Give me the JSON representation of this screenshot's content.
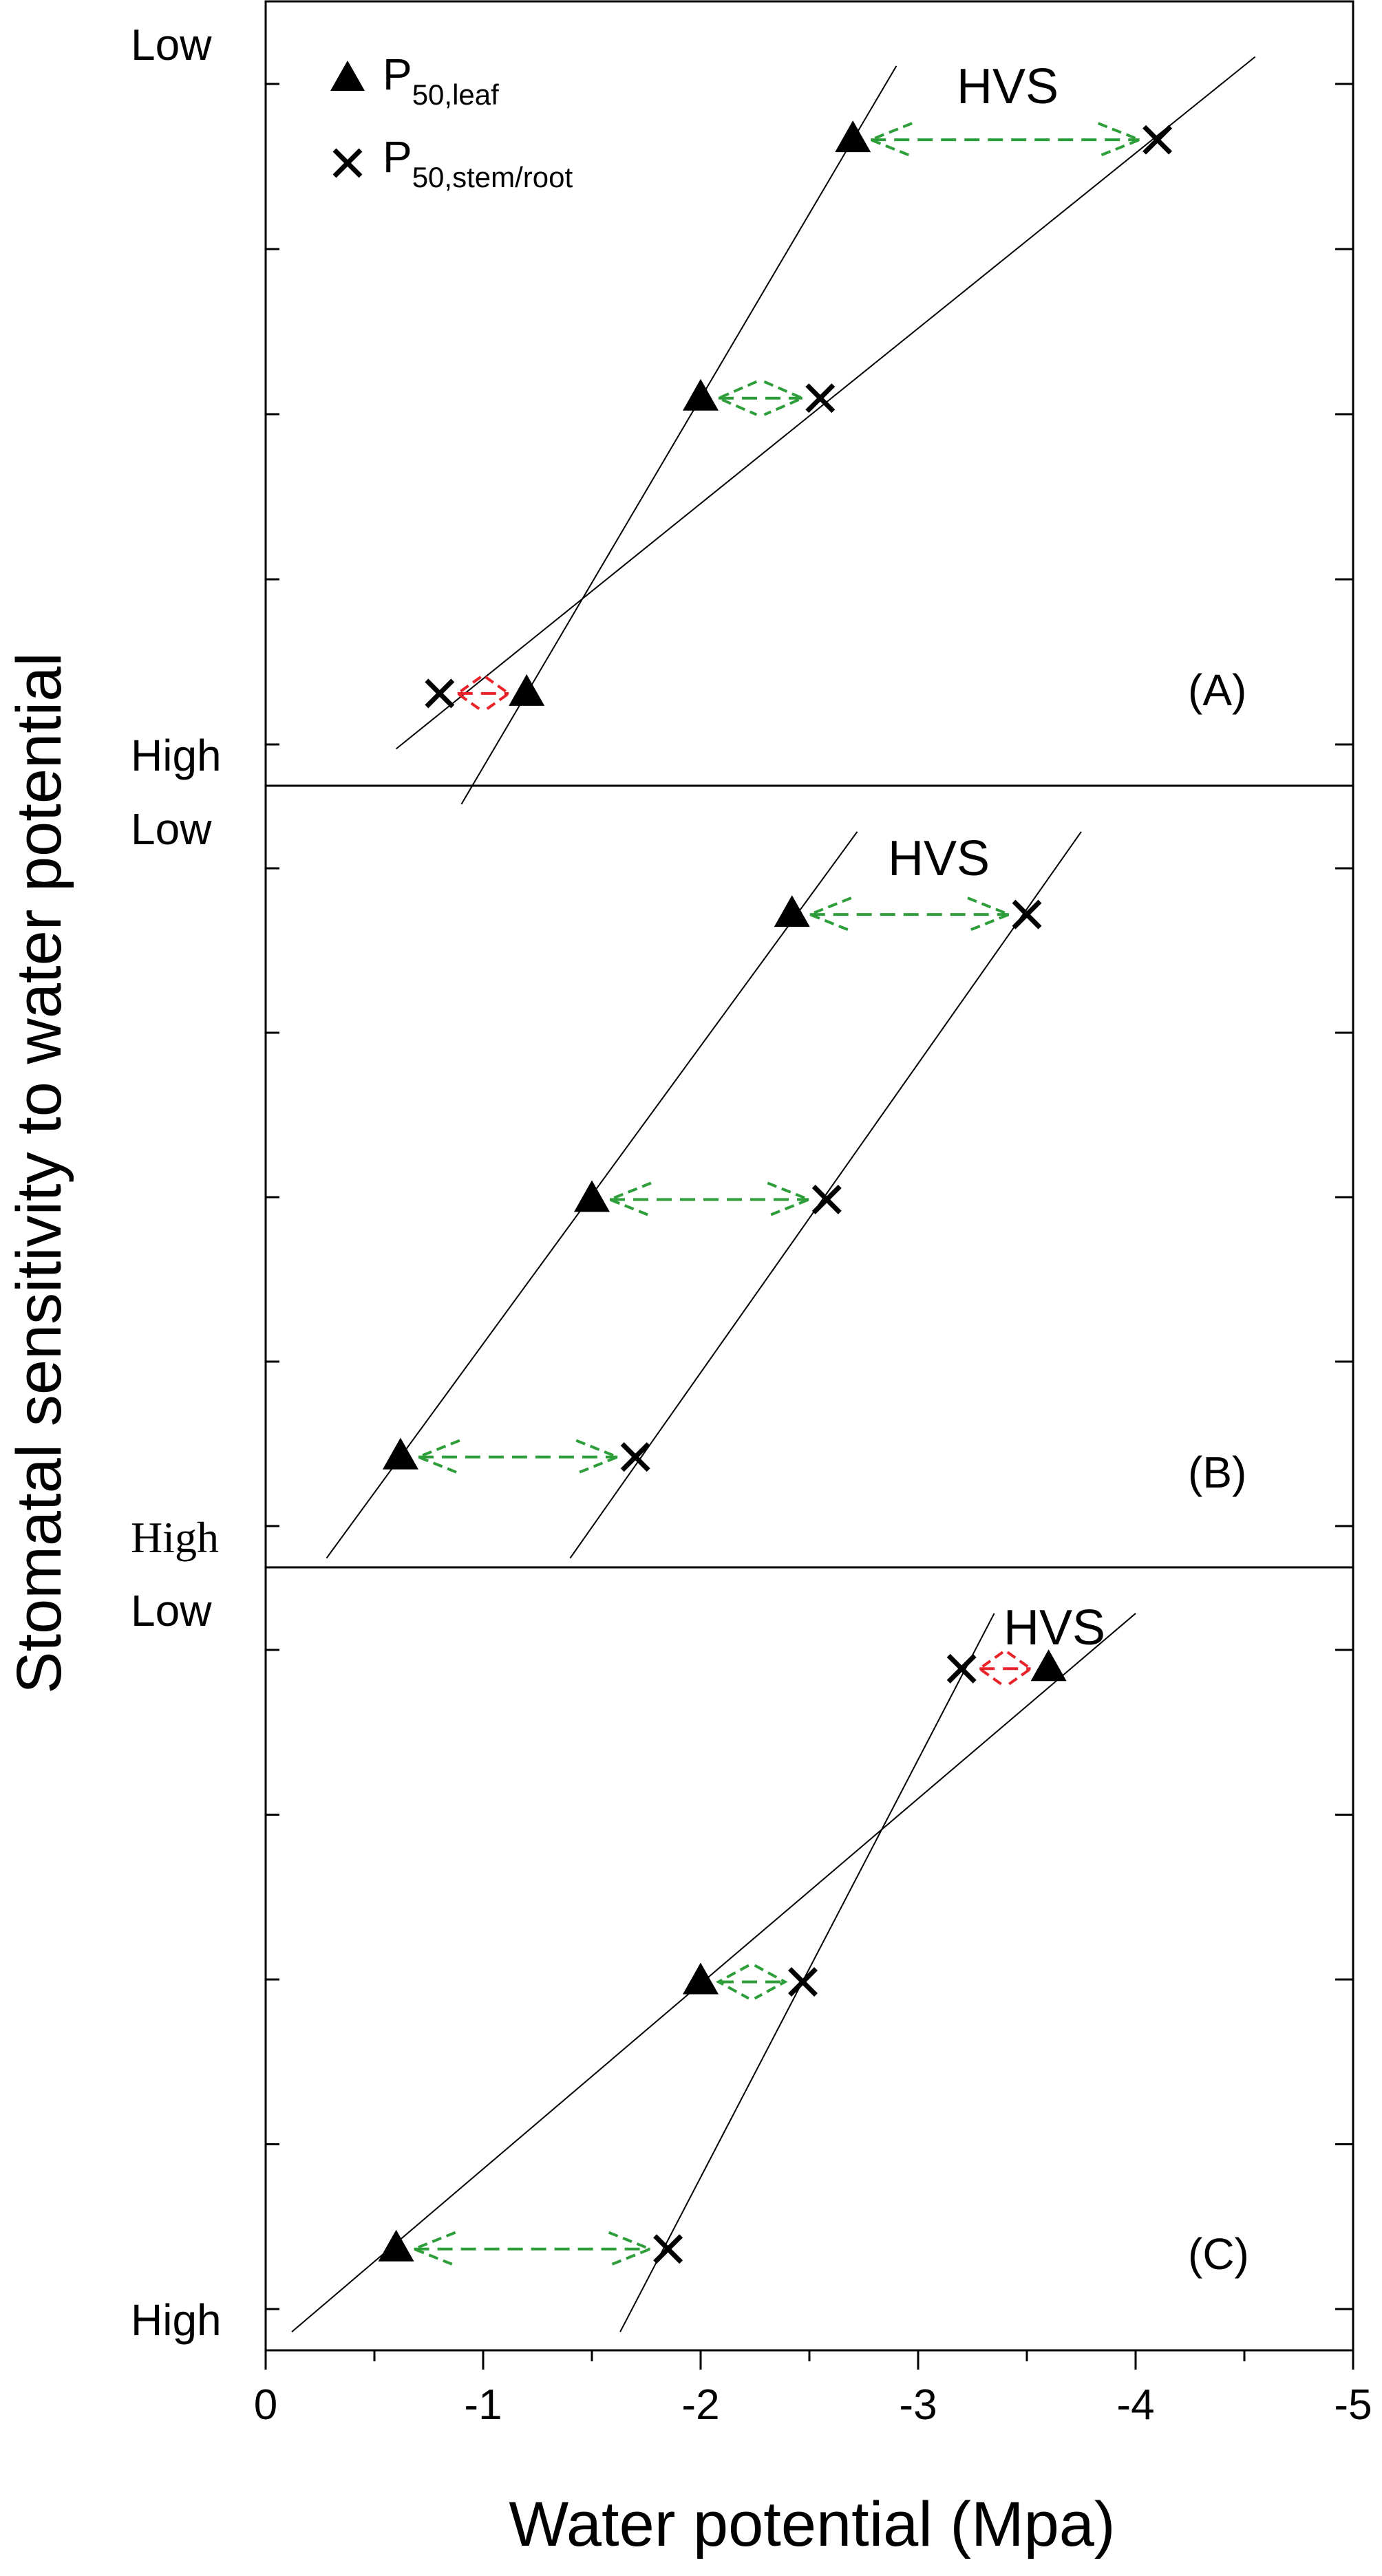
{
  "chart_data": {
    "type": "scatter",
    "xlabel": "Water potential (Mpa)",
    "ylabel": "Stomatal sensitivity to water potential",
    "xlim": [
      0,
      -5
    ],
    "x_ticks": [
      "0",
      "-1",
      "-2",
      "-3",
      "-4",
      "-5"
    ],
    "y_tick_labels": {
      "low": "Low",
      "high": "High"
    },
    "legend": {
      "placement": "top-left",
      "entries": [
        {
          "marker": "triangle",
          "base": "P",
          "sub": "50,leaf"
        },
        {
          "marker": "cross",
          "base": "P",
          "sub": "50,stem/root"
        }
      ]
    },
    "colors": {
      "safe_arrow": "#2e9e3a",
      "negative_arrow": "#e8232a",
      "ink": "#000000"
    },
    "panels": [
      {
        "label": "(A)",
        "annotation": "HVS",
        "leaf": [
          {
            "x": -1.2,
            "y": 1
          },
          {
            "x": -2.0,
            "y": 4.2
          },
          {
            "x": -2.7,
            "y": 7.0
          }
        ],
        "stem_root": [
          {
            "x": -0.8,
            "y": 1
          },
          {
            "x": -2.55,
            "y": 4.2
          },
          {
            "x": -4.1,
            "y": 7.0
          }
        ],
        "leaf_line": {
          "x1": -0.9,
          "y1": -0.2,
          "x2": -2.9,
          "y2": 7.8
        },
        "stem_line": {
          "x1": -0.6,
          "y1": 0.4,
          "x2": -4.55,
          "y2": 7.9
        },
        "arrows": [
          {
            "y": 1,
            "color": "red"
          },
          {
            "y": 4.2,
            "color": "green"
          },
          {
            "y": 7.0,
            "color": "green"
          }
        ]
      },
      {
        "label": "(B)",
        "annotation": "HVS",
        "leaf": [
          {
            "x": -0.62,
            "y": 1.2
          },
          {
            "x": -1.5,
            "y": 4.0
          },
          {
            "x": -2.42,
            "y": 7.1
          }
        ],
        "stem_root": [
          {
            "x": -1.7,
            "y": 1.2
          },
          {
            "x": -2.58,
            "y": 4.0
          },
          {
            "x": -3.5,
            "y": 7.1
          }
        ],
        "leaf_line": {
          "x1": -0.28,
          "y1": 0.1,
          "x2": -2.72,
          "y2": 8.0
        },
        "stem_line": {
          "x1": -1.4,
          "y1": 0.1,
          "x2": -3.75,
          "y2": 8.0
        },
        "arrows": [
          {
            "y": 1.2,
            "color": "green"
          },
          {
            "y": 4.0,
            "color": "green"
          },
          {
            "y": 7.1,
            "color": "green"
          }
        ]
      },
      {
        "label": "(C)",
        "annotation": "HVS",
        "leaf": [
          {
            "x": -0.6,
            "y": 1.1
          },
          {
            "x": -2.0,
            "y": 4.0
          },
          {
            "x": -3.6,
            "y": 7.4
          }
        ],
        "stem_root": [
          {
            "x": -1.85,
            "y": 1.1
          },
          {
            "x": -2.47,
            "y": 4.0
          },
          {
            "x": -3.2,
            "y": 7.4
          }
        ],
        "leaf_line": {
          "x1": -0.12,
          "y1": 0.2,
          "x2": -4.0,
          "y2": 8.0
        },
        "stem_line": {
          "x1": -1.63,
          "y1": 0.2,
          "x2": -3.35,
          "y2": 8.0
        },
        "arrows": [
          {
            "y": 1.1,
            "color": "green"
          },
          {
            "y": 4.0,
            "color": "green"
          },
          {
            "y": 7.4,
            "color": "red"
          }
        ]
      }
    ]
  }
}
